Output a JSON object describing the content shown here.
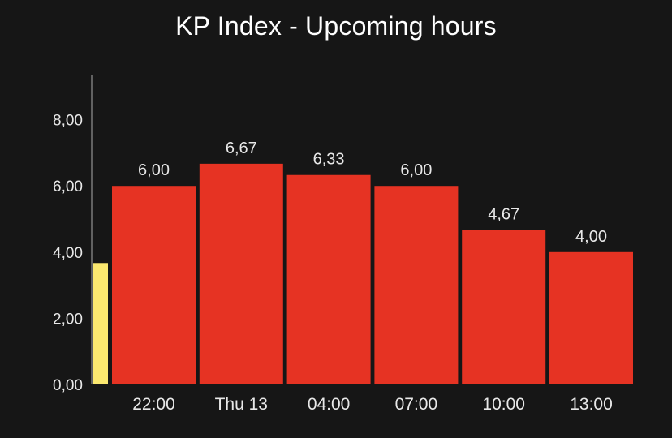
{
  "chart_data": {
    "type": "bar",
    "title": "KP Index - Upcoming hours",
    "xlabel": "",
    "ylabel": "",
    "ylim": [
      0,
      9
    ],
    "y_ticks": [
      "0,00",
      "2,00",
      "4,00",
      "6,00",
      "8,00"
    ],
    "y_tick_values": [
      0,
      2,
      4,
      6,
      8
    ],
    "categories": [
      "22:00",
      "Thu 13",
      "04:00",
      "07:00",
      "10:00",
      "13:00"
    ],
    "values": [
      6.0,
      6.67,
      6.33,
      6.0,
      4.67,
      4.0
    ],
    "value_labels": [
      "6,00",
      "6,67",
      "6,33",
      "6,00",
      "4,67",
      "4,00"
    ],
    "current_value": 3.67,
    "colors": {
      "bar": "#e63323",
      "current_bar": "#fbe86f",
      "axis": "#7a7a7a",
      "background": "#161616"
    }
  }
}
